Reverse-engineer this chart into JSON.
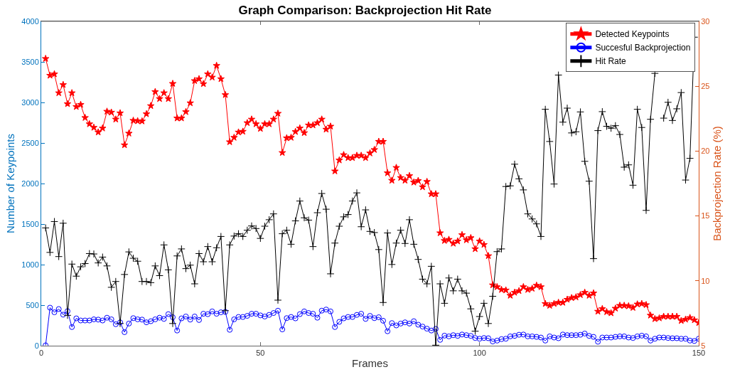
{
  "chart_data": {
    "type": "line",
    "title": "Graph Comparison: Backprojection Hit Rate",
    "xlabel": "Frames",
    "ylabel": "Number of Keypoints",
    "y2label": "Backprojection Rate (%)",
    "x": [
      1,
      2,
      3,
      4,
      5,
      6,
      7,
      8,
      9,
      10,
      11,
      12,
      13,
      14,
      15,
      16,
      17,
      18,
      19,
      20,
      21,
      22,
      23,
      24,
      25,
      26,
      27,
      28,
      29,
      30,
      31,
      32,
      33,
      34,
      35,
      36,
      37,
      38,
      39,
      40,
      41,
      42,
      43,
      44,
      45,
      46,
      47,
      48,
      49,
      50,
      51,
      52,
      53,
      54,
      55,
      56,
      57,
      58,
      59,
      60,
      61,
      62,
      63,
      64,
      65,
      66,
      67,
      68,
      69,
      70,
      71,
      72,
      73,
      74,
      75,
      76,
      77,
      78,
      79,
      80,
      81,
      82,
      83,
      84,
      85,
      86,
      87,
      88,
      89,
      90,
      91,
      92,
      93,
      94,
      95,
      96,
      97,
      98,
      99,
      100,
      101,
      102,
      103,
      104,
      105,
      106,
      107,
      108,
      109,
      110,
      111,
      112,
      113,
      114,
      115,
      116,
      117,
      118,
      119,
      120,
      121,
      122,
      123,
      124,
      125,
      126,
      127,
      128,
      129,
      130,
      131,
      132,
      133,
      134,
      135,
      136,
      137,
      138,
      139,
      140,
      141,
      142,
      143,
      144,
      145,
      146,
      147,
      148,
      149,
      150
    ],
    "xlim": [
      0,
      150
    ],
    "xticks": [
      0,
      50,
      100,
      150
    ],
    "ylim": [
      0,
      4000
    ],
    "yticks": [
      0,
      500,
      1000,
      1500,
      2000,
      2500,
      3000,
      3500,
      4000
    ],
    "y2lim": [
      5,
      30
    ],
    "y2ticks": [
      5,
      10,
      15,
      20,
      25,
      30
    ],
    "legend": "top right",
    "series": [
      {
        "name": "Detected Keypoints",
        "color": "#ff0000",
        "marker": "star",
        "values": [
          3540,
          3333,
          3350,
          3117,
          3218,
          2982,
          3117,
          2947,
          2973,
          2812,
          2734,
          2691,
          2633,
          2682,
          2889,
          2878,
          2792,
          2869,
          2475,
          2619,
          2777,
          2771,
          2769,
          2858,
          2958,
          3131,
          3045,
          3117,
          3045,
          3232,
          2806,
          2806,
          2884,
          2993,
          3267,
          3290,
          3229,
          3350,
          3310,
          3454,
          3290,
          3094,
          2513,
          2567,
          2633,
          2642,
          2748,
          2792,
          2734,
          2677,
          2734,
          2734,
          2792,
          2864,
          2380,
          2561,
          2567,
          2639,
          2682,
          2625,
          2720,
          2720,
          2748,
          2792,
          2668,
          2705,
          2153,
          2288,
          2354,
          2317,
          2317,
          2345,
          2345,
          2317,
          2374,
          2417,
          2518,
          2518,
          2130,
          2038,
          2196,
          2072,
          2038,
          2095,
          2015,
          2035,
          1957,
          2023,
          1871,
          1871,
          1390,
          1295,
          1309,
          1261,
          1289,
          1367,
          1304,
          1330,
          1194,
          1289,
          1246,
          1108,
          748,
          725,
          691,
          685,
          619,
          656,
          676,
          725,
          691,
          705,
          743,
          725,
          518,
          495,
          518,
          532,
          532,
          570,
          590,
          599,
          627,
          656,
          619,
          648,
          423,
          455,
          417,
          403,
          460,
          495,
          495,
          489,
          469,
          512,
          518,
          504,
          374,
          331,
          340,
          360,
          360,
          360,
          360,
          308,
          325,
          345,
          317,
          282
        ]
      },
      {
        "name": "Succesful Backprojection",
        "color": "#0000ff",
        "marker": "circle",
        "values": [
          5,
          469,
          412,
          452,
          383,
          426,
          230,
          337,
          311,
          311,
          311,
          325,
          322,
          311,
          345,
          325,
          265,
          288,
          167,
          273,
          340,
          325,
          322,
          288,
          302,
          325,
          345,
          331,
          389,
          351,
          187,
          337,
          360,
          322,
          360,
          317,
          394,
          389,
          423,
          394,
          412,
          417,
          196,
          325,
          354,
          354,
          368,
          394,
          394,
          374,
          360,
          380,
          403,
          432,
          201,
          340,
          354,
          337,
          389,
          423,
          403,
          394,
          345,
          432,
          446,
          423,
          230,
          294,
          337,
          354,
          354,
          380,
          394,
          331,
          368,
          340,
          351,
          308,
          178,
          279,
          250,
          273,
          288,
          273,
          302,
          259,
          236,
          210,
          187,
          207,
          72,
          124,
          115,
          130,
          121,
          138,
          130,
          121,
          95,
          86,
          95,
          92,
          52,
          63,
          81,
          86,
          115,
          121,
          135,
          138,
          115,
          115,
          109,
          101,
          63,
          115,
          101,
          92,
          138,
          130,
          130,
          130,
          135,
          150,
          121,
          109,
          49,
          101,
          101,
          101,
          109,
          115,
          115,
          101,
          95,
          115,
          124,
          115,
          63,
          86,
          101,
          101,
          95,
          92,
          92,
          86,
          86,
          63,
          58,
          86
        ]
      },
      {
        "name": "Hit Rate",
        "color": "#000000",
        "marker": "cross",
        "axis": "y2",
        "x": [
          1,
          2,
          3,
          4,
          5,
          6,
          7,
          8,
          9,
          10,
          11,
          12,
          13,
          14,
          15,
          16,
          17,
          18,
          19,
          20,
          21,
          22,
          23,
          24,
          25,
          26,
          27,
          28,
          29,
          30,
          31,
          32,
          33,
          34,
          35,
          36,
          37,
          38,
          39,
          40,
          41,
          42,
          43,
          44,
          45,
          46,
          47,
          48,
          49,
          50,
          51,
          52,
          53,
          54,
          55,
          56,
          57,
          58,
          59,
          60,
          61,
          62,
          63,
          64,
          65,
          66,
          67,
          68,
          69,
          70,
          71,
          72,
          73,
          74,
          75,
          76,
          77,
          78,
          79,
          80,
          81,
          82,
          83,
          84,
          85,
          86,
          87,
          88,
          89,
          90,
          91,
          92,
          93,
          94,
          95,
          96,
          97,
          98,
          99,
          100,
          101,
          102,
          103,
          104,
          105,
          106,
          107,
          108,
          109,
          110,
          111,
          112,
          113,
          114,
          115,
          116,
          117,
          118,
          119,
          120,
          121,
          122,
          123,
          124,
          125,
          126,
          127,
          128,
          129,
          130,
          131,
          132,
          133,
          134,
          135,
          136,
          137,
          138,
          139,
          140,
          141,
          142,
          143,
          144,
          145,
          146,
          147,
          148,
          149
        ],
        "values": [
          14.08,
          12.19,
          14.57,
          11.87,
          14.44,
          7.34,
          11.29,
          10.36,
          11.08,
          11.33,
          12.1,
          12.07,
          11.38,
          11.83,
          11.15,
          9.5,
          9.95,
          6.71,
          10.49,
          12.23,
          11.74,
          11.51,
          9.95,
          9.95,
          9.86,
          11.15,
          10.4,
          12.77,
          10.85,
          6.71,
          11.92,
          12.46,
          10.94,
          11.21,
          9.77,
          12.1,
          11.47,
          12.64,
          11.47,
          12.55,
          13.42,
          7.7,
          12.77,
          13.45,
          13.63,
          13.42,
          13.9,
          14.23,
          14.03,
          13.27,
          14.21,
          14.71,
          15.16,
          8.51,
          13.63,
          13.9,
          12.82,
          14.62,
          16.15,
          14.86,
          14.68,
          12.64,
          15.25,
          16.73,
          15.52,
          10.54,
          12.91,
          14.21,
          14.93,
          15.11,
          16.15,
          16.78,
          14.17,
          15.47,
          13.81,
          13.72,
          12.41,
          8.33,
          13.69,
          11.26,
          12.91,
          13.9,
          12.88,
          14.71,
          12.82,
          11.65,
          10.13,
          9.77,
          11.12,
          5.04,
          9.77,
          8.27,
          10.22,
          9.23,
          10.13,
          9.23,
          9.05,
          7.84,
          6.12,
          7.25,
          8.27,
          6.71,
          8.81,
          12.25,
          12.46,
          17.27,
          17.32,
          18.99,
          17.86,
          17.01,
          15.16,
          14.77,
          14.39,
          13.42,
          23.22,
          20.74,
          17.46,
          25.86,
          22.23,
          23.31,
          21.4,
          21.49,
          23.02,
          19.21,
          17.68,
          11.71,
          21.58,
          23.04,
          21.91,
          21.76,
          21.96,
          21.28,
          18.76,
          18.94,
          17.37,
          23.22,
          21.82,
          15.43,
          22.45,
          25.99,
          null,
          22.54,
          23.76,
          22.36,
          23.26,
          24.51,
          17.77,
          19.44,
          28.78
        ]
      }
    ]
  }
}
